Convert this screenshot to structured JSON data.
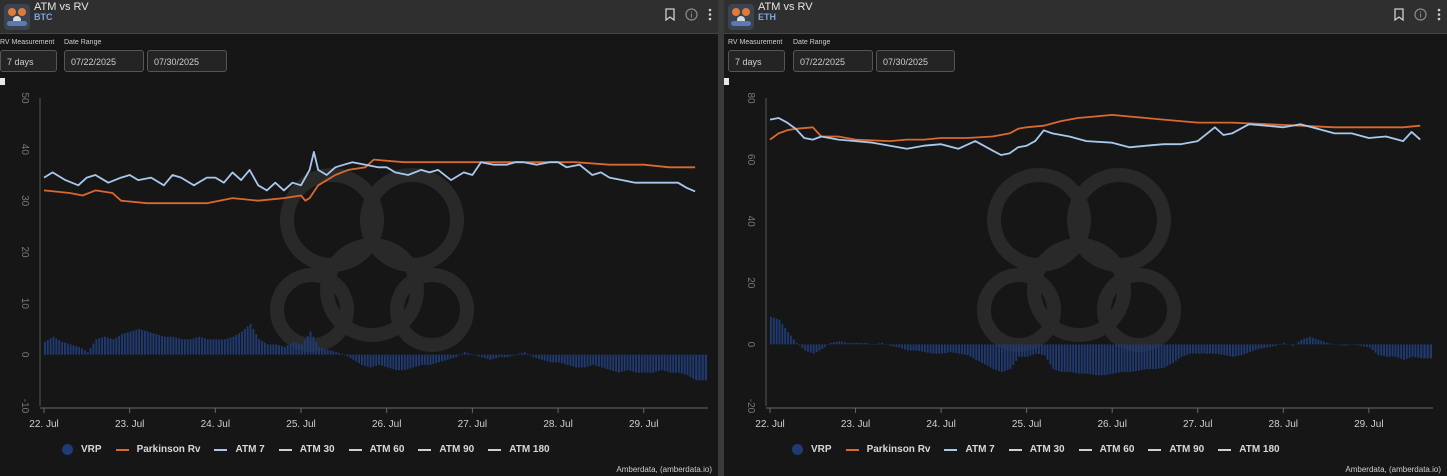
{
  "panels": [
    {
      "title": "ATM vs RV",
      "subtitle": "BTC",
      "rv_label": "RV Measurement",
      "rv_value": "7 days",
      "date_label": "Date Range",
      "date_start": "07/22/2025",
      "date_end": "07/30/2025",
      "credit": "Amberdata, (amberdata.io)",
      "legend": [
        {
          "name": "VRP",
          "color": "#1f3b73",
          "kind": "dot"
        },
        {
          "name": "Parkinson Rv",
          "color": "#d9692f",
          "kind": "line"
        },
        {
          "name": "ATM 7",
          "color": "#a9c8ee",
          "kind": "line"
        },
        {
          "name": "ATM 30",
          "color": "#d0d0d0",
          "kind": "line"
        },
        {
          "name": "ATM 60",
          "color": "#d0d0d0",
          "kind": "line"
        },
        {
          "name": "ATM 90",
          "color": "#d0d0d0",
          "kind": "line"
        },
        {
          "name": "ATM 180",
          "color": "#d0d0d0",
          "kind": "line"
        }
      ]
    },
    {
      "title": "ATM vs RV",
      "subtitle": "ETH",
      "rv_label": "RV Measurement",
      "rv_value": "7 days",
      "date_label": "Date Range",
      "date_start": "07/22/2025",
      "date_end": "07/30/2025",
      "credit": "Amberdata, (amberdata.io)",
      "legend": [
        {
          "name": "VRP",
          "color": "#1f3b73",
          "kind": "dot"
        },
        {
          "name": "Parkinson Rv",
          "color": "#d9692f",
          "kind": "line"
        },
        {
          "name": "ATM 7",
          "color": "#a9c8ee",
          "kind": "line"
        },
        {
          "name": "ATM 30",
          "color": "#d0d0d0",
          "kind": "line"
        },
        {
          "name": "ATM 60",
          "color": "#d0d0d0",
          "kind": "line"
        },
        {
          "name": "ATM 90",
          "color": "#d0d0d0",
          "kind": "line"
        },
        {
          "name": "ATM 180",
          "color": "#d0d0d0",
          "kind": "line"
        }
      ]
    }
  ],
  "chart_data": [
    {
      "type": "line",
      "asset": "BTC",
      "x_ticks": [
        "22. Jul",
        "23. Jul",
        "24. Jul",
        "25. Jul",
        "26. Jul",
        "27. Jul",
        "28. Jul",
        "29. Jul"
      ],
      "x_range": [
        22.0,
        29.75
      ],
      "ylim": [
        -10,
        50
      ],
      "y_ticks": [
        -10,
        0,
        10,
        20,
        30,
        40,
        50
      ],
      "colors": {
        "vrp": "#1f3b73",
        "parkinson": "#d9692f",
        "atm7": "#a9c8ee"
      },
      "series": [
        {
          "name": "ATM 7",
          "x": [
            22.0,
            22.1,
            22.25,
            22.4,
            22.5,
            22.6,
            22.75,
            22.9,
            23.0,
            23.1,
            23.25,
            23.4,
            23.5,
            23.6,
            23.75,
            23.9,
            24.0,
            24.1,
            24.2,
            24.3,
            24.4,
            24.5,
            24.6,
            24.7,
            24.8,
            24.9,
            25.0,
            25.1,
            25.15,
            25.2,
            25.3,
            25.4,
            25.5,
            25.6,
            25.75,
            25.9,
            26.0,
            26.1,
            26.25,
            26.4,
            26.5,
            26.6,
            26.75,
            26.9,
            27.0,
            27.1,
            27.25,
            27.4,
            27.5,
            27.6,
            27.75,
            27.9,
            28.0,
            28.1,
            28.25,
            28.4,
            28.5,
            28.6,
            28.75,
            28.9,
            29.0,
            29.1,
            29.25,
            29.4,
            29.5,
            29.6
          ],
          "values": [
            34.5,
            35.5,
            34.0,
            33.0,
            34.5,
            35.0,
            33.5,
            34.5,
            35.0,
            34.0,
            34.5,
            33.0,
            35.0,
            34.5,
            33.0,
            34.5,
            34.5,
            33.5,
            35.5,
            34.0,
            36.0,
            33.0,
            32.0,
            33.5,
            32.0,
            33.5,
            33.0,
            36.0,
            39.5,
            36.0,
            35.0,
            36.5,
            37.0,
            37.5,
            37.0,
            36.5,
            36.5,
            35.5,
            35.0,
            36.0,
            35.5,
            36.0,
            34.0,
            35.5,
            35.0,
            37.5,
            37.0,
            37.0,
            37.5,
            37.5,
            37.0,
            37.5,
            37.5,
            36.5,
            37.0,
            35.0,
            35.5,
            34.5,
            34.0,
            33.5,
            33.5,
            33.5,
            33.5,
            33.5,
            32.5,
            31.8
          ]
        },
        {
          "name": "Parkinson Rv",
          "x": [
            22.0,
            22.3,
            22.45,
            22.6,
            22.8,
            22.9,
            23.2,
            23.5,
            23.7,
            23.9,
            24.2,
            24.5,
            24.8,
            25.0,
            25.05,
            25.1,
            25.2,
            25.4,
            25.55,
            25.75,
            25.85,
            26.2,
            26.6,
            27.0,
            27.4,
            27.8,
            28.2,
            28.6,
            29.0,
            29.3,
            29.6
          ],
          "values": [
            32.0,
            31.5,
            31.0,
            32.0,
            31.5,
            30.0,
            29.5,
            29.5,
            29.5,
            29.5,
            30.5,
            30.0,
            30.5,
            31.0,
            30.0,
            30.5,
            33.0,
            35.0,
            36.0,
            36.5,
            38.0,
            37.5,
            37.5,
            37.5,
            37.5,
            37.5,
            37.5,
            37.0,
            37.0,
            36.5,
            36.5
          ]
        },
        {
          "name": "VRP",
          "x": [
            22.0,
            22.1,
            22.2,
            22.3,
            22.4,
            22.5,
            22.6,
            22.7,
            22.8,
            22.9,
            23.0,
            23.1,
            23.2,
            23.3,
            23.4,
            23.5,
            23.6,
            23.7,
            23.8,
            23.9,
            24.0,
            24.1,
            24.2,
            24.3,
            24.4,
            24.5,
            24.6,
            24.7,
            24.8,
            24.9,
            25.0,
            25.1,
            25.2,
            25.3,
            25.4,
            25.5,
            25.6,
            25.7,
            25.8,
            25.9,
            26.0,
            26.1,
            26.2,
            26.3,
            26.4,
            26.5,
            26.6,
            26.7,
            26.8,
            26.9,
            27.0,
            27.1,
            27.2,
            27.3,
            27.4,
            27.5,
            27.6,
            27.7,
            27.8,
            27.9,
            28.0,
            28.1,
            28.2,
            28.3,
            28.4,
            28.5,
            28.6,
            28.7,
            28.8,
            28.9,
            29.0,
            29.1,
            29.2,
            29.3,
            29.4,
            29.5,
            29.6
          ],
          "values": [
            2.5,
            3.5,
            2.5,
            2.0,
            1.5,
            0.5,
            3.0,
            3.5,
            3.0,
            4.0,
            4.5,
            5.0,
            4.5,
            4.0,
            3.5,
            3.5,
            3.0,
            3.0,
            3.5,
            3.0,
            3.0,
            3.0,
            3.5,
            4.5,
            6.0,
            3.0,
            2.0,
            2.0,
            1.5,
            2.5,
            2.0,
            4.5,
            1.5,
            1.0,
            0.5,
            0.0,
            -1.0,
            -2.0,
            -2.5,
            -2.0,
            -2.5,
            -3.0,
            -3.0,
            -2.5,
            -2.0,
            -2.0,
            -1.5,
            -1.0,
            -0.5,
            0.5,
            0.0,
            -0.5,
            -1.0,
            -0.5,
            -0.5,
            0.0,
            0.5,
            -0.5,
            -1.0,
            -1.5,
            -1.5,
            -2.0,
            -2.5,
            -2.5,
            -2.0,
            -2.5,
            -3.0,
            -3.5,
            -3.0,
            -3.5,
            -3.5,
            -3.5,
            -3.0,
            -3.5,
            -3.5,
            -4.0,
            -5.0
          ]
        }
      ]
    },
    {
      "type": "line",
      "asset": "ETH",
      "x_ticks": [
        "22. Jul",
        "23. Jul",
        "24. Jul",
        "25. Jul",
        "26. Jul",
        "27. Jul",
        "28. Jul",
        "29. Jul"
      ],
      "x_range": [
        22.0,
        29.75
      ],
      "ylim": [
        -20,
        80
      ],
      "y_ticks": [
        -20,
        0,
        20,
        40,
        60,
        80
      ],
      "colors": {
        "vrp": "#1f3b73",
        "parkinson": "#d9692f",
        "atm7": "#a9c8ee"
      },
      "series": [
        {
          "name": "ATM 7",
          "x": [
            22.0,
            22.1,
            22.2,
            22.3,
            22.4,
            22.5,
            22.6,
            22.8,
            23.0,
            23.2,
            23.4,
            23.6,
            23.8,
            24.0,
            24.2,
            24.4,
            24.6,
            24.7,
            24.8,
            24.9,
            25.0,
            25.1,
            25.2,
            25.3,
            25.5,
            25.7,
            26.0,
            26.2,
            26.4,
            26.6,
            26.8,
            27.0,
            27.2,
            27.3,
            27.4,
            27.5,
            27.6,
            27.8,
            28.0,
            28.2,
            28.4,
            28.6,
            28.8,
            29.0,
            29.2,
            29.4,
            29.5,
            29.6
          ],
          "values": [
            73.0,
            73.5,
            72.0,
            70.0,
            67.0,
            66.5,
            67.5,
            66.5,
            66.0,
            65.5,
            64.5,
            63.5,
            64.5,
            65.0,
            63.5,
            66.0,
            63.0,
            61.5,
            62.0,
            64.0,
            64.5,
            66.0,
            69.5,
            68.5,
            67.5,
            66.0,
            65.5,
            64.0,
            64.5,
            65.0,
            65.0,
            66.0,
            70.5,
            68.0,
            68.5,
            70.0,
            71.5,
            71.0,
            70.5,
            71.5,
            70.0,
            68.5,
            68.5,
            67.0,
            67.5,
            66.0,
            69.0,
            66.5
          ]
        },
        {
          "name": "Parkinson Rv",
          "x": [
            22.0,
            22.1,
            22.2,
            22.3,
            22.5,
            22.6,
            22.8,
            23.0,
            23.4,
            23.6,
            23.8,
            24.0,
            24.3,
            24.6,
            24.8,
            24.9,
            25.0,
            25.2,
            25.4,
            25.6,
            25.8,
            26.0,
            26.2,
            26.6,
            27.0,
            27.4,
            27.8,
            28.2,
            28.6,
            29.0,
            29.4,
            29.6
          ],
          "values": [
            66.5,
            68.5,
            69.5,
            70.0,
            70.5,
            67.5,
            67.5,
            66.5,
            66.0,
            66.5,
            66.5,
            67.0,
            67.0,
            67.5,
            68.5,
            70.0,
            70.5,
            71.0,
            72.5,
            73.5,
            74.0,
            74.5,
            74.0,
            73.0,
            72.0,
            72.0,
            71.5,
            71.0,
            70.5,
            70.5,
            70.5,
            71.0
          ]
        },
        {
          "name": "VRP",
          "x": [
            22.0,
            22.1,
            22.2,
            22.3,
            22.4,
            22.5,
            22.6,
            22.7,
            22.8,
            22.9,
            23.0,
            23.1,
            23.2,
            23.3,
            23.4,
            23.5,
            23.6,
            23.7,
            23.8,
            23.9,
            24.0,
            24.1,
            24.2,
            24.3,
            24.4,
            24.5,
            24.6,
            24.7,
            24.8,
            24.9,
            25.0,
            25.1,
            25.2,
            25.3,
            25.4,
            25.5,
            25.6,
            25.7,
            25.8,
            25.9,
            26.0,
            26.1,
            26.2,
            26.3,
            26.4,
            26.5,
            26.6,
            26.7,
            26.8,
            26.9,
            27.0,
            27.1,
            27.2,
            27.3,
            27.4,
            27.5,
            27.6,
            27.7,
            27.8,
            27.9,
            28.0,
            28.1,
            28.2,
            28.3,
            28.4,
            28.5,
            28.6,
            28.7,
            28.8,
            28.9,
            29.0,
            29.1,
            29.2,
            29.3,
            29.4,
            29.5,
            29.6
          ],
          "values": [
            9.0,
            8.0,
            4.0,
            0.5,
            -2.0,
            -3.0,
            -1.5,
            0.5,
            1.0,
            0.5,
            0.5,
            0.5,
            0.0,
            0.5,
            -0.5,
            -1.0,
            -2.0,
            -2.0,
            -2.5,
            -3.0,
            -3.0,
            -2.5,
            -3.0,
            -3.5,
            -5.0,
            -6.5,
            -8.0,
            -9.0,
            -8.0,
            -4.0,
            -4.0,
            -3.0,
            -3.5,
            -8.0,
            -9.0,
            -9.0,
            -9.5,
            -9.5,
            -10.0,
            -10.0,
            -9.5,
            -9.0,
            -9.0,
            -8.5,
            -8.0,
            -8.0,
            -7.5,
            -6.0,
            -4.0,
            -3.0,
            -3.0,
            -3.0,
            -3.0,
            -3.5,
            -4.0,
            -3.5,
            -2.5,
            -1.5,
            -1.0,
            -0.5,
            0.5,
            -0.5,
            1.5,
            2.5,
            1.5,
            0.5,
            0.0,
            -0.5,
            0.0,
            -0.5,
            -1.0,
            -3.5,
            -4.0,
            -4.0,
            -5.0,
            -4.0,
            -4.5
          ]
        }
      ]
    }
  ]
}
